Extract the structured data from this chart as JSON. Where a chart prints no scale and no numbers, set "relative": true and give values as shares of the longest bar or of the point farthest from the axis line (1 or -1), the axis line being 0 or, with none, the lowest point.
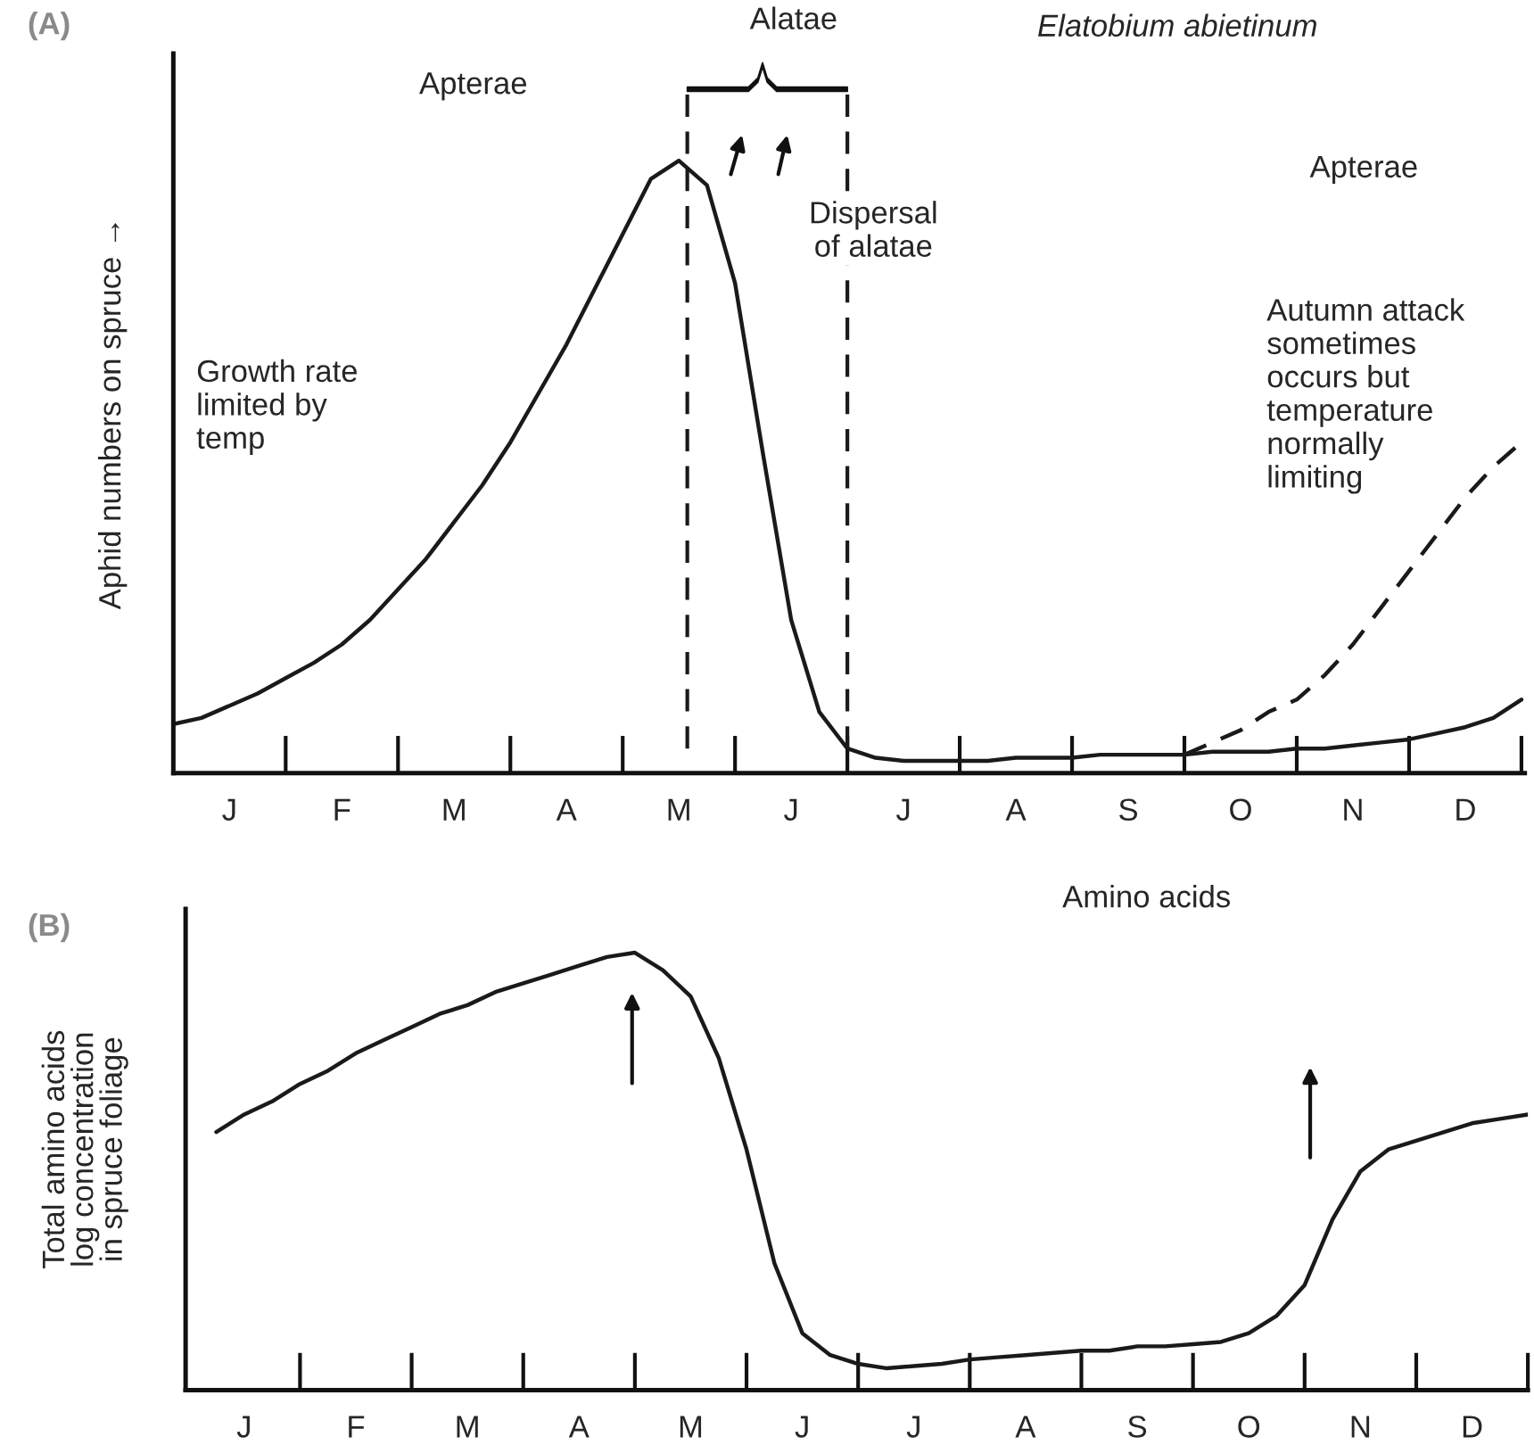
{
  "chart_data": [
    {
      "type": "line",
      "relative": true,
      "title": "Elatobium abietinum",
      "ylabel": "Aphid numbers on spruce →",
      "categories": [
        null,
        null,
        "J",
        null,
        null,
        null,
        "F",
        null,
        null,
        null,
        "M",
        null,
        null,
        null,
        "A",
        null,
        null,
        null,
        "M",
        null,
        null,
        null,
        "J",
        null,
        null,
        null,
        "J",
        null,
        null,
        null,
        "A",
        null,
        null,
        null,
        "S",
        null,
        null,
        null,
        "O",
        null,
        null,
        null,
        "N",
        null,
        null,
        null,
        "D",
        null,
        null
      ],
      "series": [
        {
          "color": "#1a1a1a",
          "line_style": "solid",
          "values": [
            0.08,
            0.09,
            0.11,
            0.13,
            0.155,
            0.18,
            0.21,
            0.25,
            0.3,
            0.35,
            0.41,
            0.47,
            0.54,
            0.62,
            0.7,
            0.79,
            0.88,
            0.97,
            1.0,
            0.96,
            0.8,
            0.52,
            0.25,
            0.1,
            0.04,
            0.025,
            0.02,
            0.02,
            0.02,
            0.02,
            0.025,
            0.025,
            0.025,
            0.03,
            0.03,
            0.03,
            0.03,
            0.035,
            0.035,
            0.035,
            0.04,
            0.04,
            0.045,
            0.05,
            0.055,
            0.065,
            0.075,
            0.09,
            0.12
          ]
        },
        {
          "color": "#1a1a1a",
          "line_style": "dashed",
          "values": [
            null,
            null,
            null,
            null,
            null,
            null,
            null,
            null,
            null,
            null,
            null,
            null,
            null,
            null,
            null,
            null,
            null,
            null,
            null,
            null,
            null,
            null,
            null,
            null,
            null,
            null,
            null,
            null,
            null,
            null,
            null,
            null,
            null,
            null,
            null,
            null,
            0.03,
            0.05,
            0.07,
            0.1,
            0.12,
            0.16,
            0.21,
            0.27,
            0.33,
            0.39,
            0.45,
            0.5,
            0.54
          ]
        }
      ],
      "annotations": [
        "(A)",
        "Apterae",
        "Alatae",
        "Dispersal\nof alatae",
        "Apterae",
        "Growth rate\nlimited by\ntemp",
        "Autumn attack\nsometimes\noccurs but\ntemperature\nnormally\nlimiting"
      ]
    },
    {
      "type": "line",
      "relative": true,
      "title": "Amino acids",
      "ylabel": "Total amino acids\nlog concentration\nin spruce foliage",
      "categories": [
        null,
        null,
        "J",
        null,
        null,
        null,
        "F",
        null,
        null,
        null,
        "M",
        null,
        null,
        null,
        "A",
        null,
        null,
        null,
        "M",
        null,
        null,
        null,
        "J",
        null,
        null,
        null,
        "J",
        null,
        null,
        null,
        "A",
        null,
        null,
        null,
        "S",
        null,
        null,
        null,
        "O",
        null,
        null,
        null,
        "N",
        null,
        null,
        null,
        "D",
        null,
        null
      ],
      "series": [
        {
          "color": "#1a1a1a",
          "line_style": "solid",
          "values": [
            null,
            0.59,
            0.63,
            0.66,
            0.7,
            0.73,
            0.77,
            0.8,
            0.83,
            0.86,
            0.88,
            0.91,
            0.93,
            0.95,
            0.97,
            0.99,
            1.0,
            0.96,
            0.9,
            0.76,
            0.55,
            0.29,
            0.13,
            0.08,
            0.06,
            0.05,
            0.055,
            0.06,
            0.07,
            0.075,
            0.08,
            0.085,
            0.09,
            0.09,
            0.1,
            0.1,
            0.105,
            0.11,
            0.13,
            0.17,
            0.24,
            0.39,
            0.5,
            0.55,
            0.57,
            0.59,
            0.61,
            0.62,
            0.63
          ]
        }
      ],
      "annotations": [
        "(B)"
      ]
    }
  ]
}
